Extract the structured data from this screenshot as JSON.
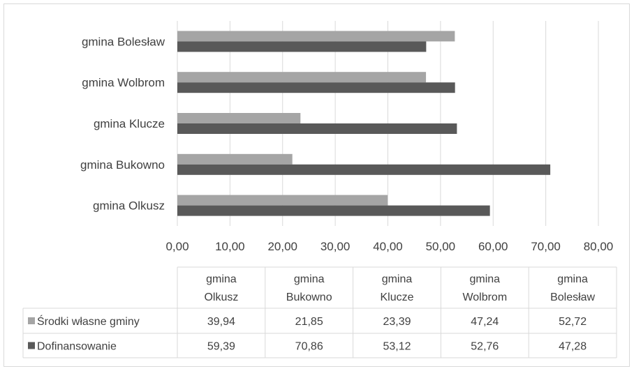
{
  "chart_data": {
    "type": "bar",
    "orientation": "horizontal",
    "categories": [
      "gmina Olkusz",
      "gmina Bukowno",
      "gmina Klucze",
      "gmina Wolbrom",
      "gmina Bolesław"
    ],
    "table_headers": [
      [
        "gmina",
        "Olkusz"
      ],
      [
        "gmina",
        "Bukowno"
      ],
      [
        "gmina",
        "Klucze"
      ],
      [
        "gmina",
        "Wolbrom"
      ],
      [
        "gmina",
        "Bolesław"
      ]
    ],
    "series": [
      {
        "name": "Środki własne gminy",
        "color": "#a5a5a5",
        "values": [
          39.94,
          21.85,
          23.39,
          47.24,
          52.72
        ],
        "labels": [
          "39,94",
          "21,85",
          "23,39",
          "47,24",
          "52,72"
        ]
      },
      {
        "name": "Dofinansowanie",
        "color": "#595959",
        "values": [
          59.39,
          70.86,
          53.12,
          52.76,
          47.28
        ],
        "labels": [
          "59,39",
          "70,86",
          "53,12",
          "52,76",
          "47,28"
        ]
      }
    ],
    "xlim": [
      0,
      80
    ],
    "x_ticks": [
      0,
      10,
      20,
      30,
      40,
      50,
      60,
      70,
      80
    ],
    "x_tick_labels": [
      "0,00",
      "10,00",
      "20,00",
      "30,00",
      "40,00",
      "50,00",
      "60,00",
      "70,00",
      "80,00"
    ],
    "grid": true,
    "legend": "data-table",
    "title": "",
    "xlabel": "",
    "ylabel": ""
  }
}
